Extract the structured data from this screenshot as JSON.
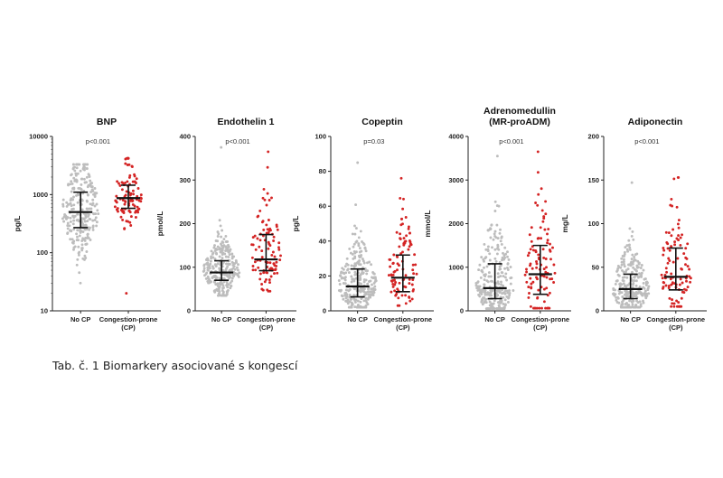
{
  "caption": "Tab. č. 1 Biomarkery asociované s kongescí",
  "colors": {
    "no_cp": "#bdbdbd",
    "cp": "#d42424",
    "axis": "#222222",
    "bar": "#111111"
  },
  "chart_data": [
    {
      "type": "scatter",
      "title": [
        "BNP"
      ],
      "ylabel": "pg/L",
      "yscale": "log",
      "ylim": [
        10,
        10000
      ],
      "yticks": [
        10,
        100,
        1000,
        10000
      ],
      "ytick_labels": [
        "10",
        "100",
        "1000",
        "10000"
      ],
      "pvalue": "p<0.001",
      "categories": [
        "No CP",
        "Congestion-prone (CP)"
      ],
      "category_lines": [
        [
          "No CP"
        ],
        [
          "Congestion-prone",
          "(CP)"
        ]
      ],
      "series": [
        {
          "median": 500,
          "q1": 270,
          "q3": 1100,
          "min": 30,
          "max": 3300,
          "n": 260
        },
        {
          "median": 870,
          "q1": 580,
          "q3": 1450,
          "min": 20,
          "max": 4200,
          "n": 95
        }
      ]
    },
    {
      "type": "scatter",
      "title": [
        "Endothelin 1"
      ],
      "ylabel": "pmol/L",
      "yscale": "linear",
      "ylim": [
        0,
        400
      ],
      "yticks": [
        0,
        100,
        200,
        300,
        400
      ],
      "ytick_labels": [
        "0",
        "100",
        "200",
        "300",
        "400"
      ],
      "pvalue": "p<0.001",
      "categories": [
        "No CP",
        "Congestion-prone (CP)"
      ],
      "category_lines": [
        [
          "No CP"
        ],
        [
          "Congestion-prone",
          "(CP)"
        ]
      ],
      "series": [
        {
          "median": 88,
          "q1": 70,
          "q3": 115,
          "min": 35,
          "max": 375,
          "n": 260
        },
        {
          "median": 118,
          "q1": 92,
          "q3": 175,
          "min": 45,
          "max": 365,
          "n": 95
        }
      ]
    },
    {
      "type": "scatter",
      "title": [
        "Copeptin"
      ],
      "ylabel": "pg/L",
      "yscale": "linear",
      "ylim": [
        0,
        100
      ],
      "yticks": [
        0,
        20,
        40,
        60,
        80,
        100
      ],
      "ytick_labels": [
        "0",
        "20",
        "40",
        "60",
        "80",
        "100"
      ],
      "pvalue": "p=0.03",
      "categories": [
        "No CP",
        "Congestion-prone (CP)"
      ],
      "category_lines": [
        [
          "No CP"
        ],
        [
          "Congestion-prone",
          "(CP)"
        ]
      ],
      "series": [
        {
          "median": 14,
          "q1": 8,
          "q3": 24,
          "min": 2,
          "max": 85,
          "n": 260
        },
        {
          "median": 19,
          "q1": 11,
          "q3": 32,
          "min": 3,
          "max": 76,
          "n": 95
        }
      ]
    },
    {
      "type": "scatter",
      "title": [
        "Adrenomedullin",
        "(MR-proADM)"
      ],
      "ylabel": "mmol/L",
      "yscale": "linear",
      "ylim": [
        0,
        4000
      ],
      "yticks": [
        0,
        1000,
        2000,
        3000,
        4000
      ],
      "ytick_labels": [
        "0",
        "1000",
        "2000",
        "3000",
        "4000"
      ],
      "pvalue": "p<0.001",
      "categories": [
        "No CP",
        "Congestion-prone (CP)"
      ],
      "category_lines": [
        [
          "No CP"
        ],
        [
          "Congestion-prone",
          "(CP)"
        ]
      ],
      "series": [
        {
          "median": 520,
          "q1": 280,
          "q3": 1080,
          "min": 50,
          "max": 3550,
          "n": 260
        },
        {
          "median": 840,
          "q1": 380,
          "q3": 1500,
          "min": 60,
          "max": 3650,
          "n": 95
        }
      ]
    },
    {
      "type": "scatter",
      "title": [
        "Adiponectin"
      ],
      "ylabel": "mg/L",
      "yscale": "linear",
      "ylim": [
        0,
        200
      ],
      "yticks": [
        0,
        50,
        100,
        150,
        200
      ],
      "ytick_labels": [
        "0",
        "50",
        "100",
        "150",
        "200"
      ],
      "pvalue": "p<0.001",
      "categories": [
        "No CP",
        "Congestion-prone (CP)"
      ],
      "category_lines": [
        [
          "No CP"
        ],
        [
          "Congestion-prone",
          "(CP)"
        ]
      ],
      "series": [
        {
          "median": 25,
          "q1": 14,
          "q3": 42,
          "min": 4,
          "max": 147,
          "n": 260
        },
        {
          "median": 39,
          "q1": 24,
          "q3": 72,
          "min": 5,
          "max": 153,
          "n": 95
        }
      ]
    }
  ]
}
